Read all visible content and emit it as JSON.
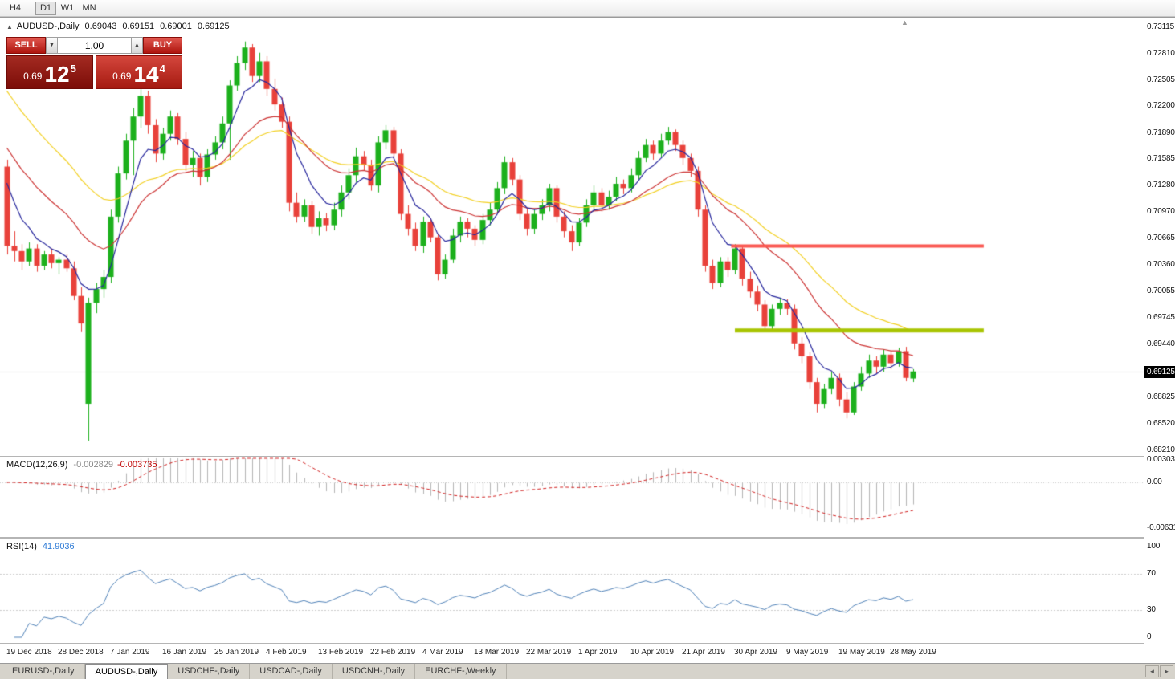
{
  "toolbar": {
    "items": [
      "H4",
      "D1",
      "W1",
      "MN"
    ],
    "active": "D1"
  },
  "chart_header": {
    "symbol": "AUDUSD-,Daily",
    "open": "0.69043",
    "high": "0.69151",
    "low": "0.69001",
    "close": "0.69125"
  },
  "trade_panel": {
    "sell_label": "SELL",
    "buy_label": "BUY",
    "volume": "1.00",
    "sell_price_small": "0.69",
    "sell_price_big": "12",
    "sell_price_sup": "5",
    "buy_price_small": "0.69",
    "buy_price_big": "14",
    "buy_price_sup": "4"
  },
  "icons": {
    "chart_icon": "▲",
    "spinner_up": "▲",
    "spinner_down": "▼",
    "shift_marker": "▲",
    "tab_scroll_left": "◄",
    "tab_scroll_right": "►"
  },
  "price_axis": {
    "ticks": [
      "0.73115",
      "0.72810",
      "0.72505",
      "0.72200",
      "0.71890",
      "0.71585",
      "0.71280",
      "0.70970",
      "0.70665",
      "0.70360",
      "0.70055",
      "0.69745",
      "0.69440",
      "0.68825",
      "0.68520",
      "0.68210"
    ],
    "current": "0.69125"
  },
  "macd_axis": [
    "0.003035",
    "0.00",
    "-0.006311"
  ],
  "rsi_axis": [
    "100",
    "70",
    "30",
    "0"
  ],
  "indicators": {
    "macd_label": "MACD(12,26,9)",
    "macd_value1": "-0.002829",
    "macd_value2": "-0.003735",
    "rsi_label": "RSI(14)",
    "rsi_value": "41.9036"
  },
  "tabs": {
    "items": [
      {
        "label": "EURUSD-,Daily",
        "active": false
      },
      {
        "label": "AUDUSD-,Daily",
        "active": true
      },
      {
        "label": "USDCHF-,Daily",
        "active": false
      },
      {
        "label": "USDCAD-,Daily",
        "active": false
      },
      {
        "label": "USDCNH-,Daily",
        "active": false
      },
      {
        "label": "EURCHF-,Weekly",
        "active": false
      }
    ]
  },
  "colors": {
    "candle_up": "#1cb01c",
    "candle_down": "#e8413a",
    "ma_fast": "#26269c",
    "ma_medium": "#cc3333",
    "ma_slow": "#f2d024",
    "resistance": "#f9564f",
    "support": "#a8c400",
    "macd_histogram": "#b4b4b4",
    "macd_signal": "#d02020",
    "rsi_line": "#4f81b7",
    "bid_line": "#dcdcdc",
    "price_tag_bg": "#000000"
  },
  "chart_data": {
    "type": "candlestick",
    "symbol": "AUDUSD-",
    "timeframe": "Daily",
    "x_labels": [
      "19 Dec 2018",
      "28 Dec 2018",
      "7 Jan 2019",
      "16 Jan 2019",
      "25 Jan 2019",
      "4 Feb 2019",
      "13 Feb 2019",
      "22 Feb 2019",
      "4 Mar 2019",
      "13 Mar 2019",
      "22 Mar 2019",
      "1 Apr 2019",
      "10 Apr 2019",
      "21 Apr 2019",
      "30 Apr 2019",
      "9 May 2019",
      "19 May 2019",
      "28 May 2019"
    ],
    "label_step": 7,
    "y_range": [
      0.68136,
      0.73217
    ],
    "macd_range": [
      -0.006311,
      0.003035
    ],
    "candles": [
      [
        0.715,
        0.7158,
        0.7048,
        0.7058
      ],
      [
        0.7058,
        0.7075,
        0.704,
        0.7052
      ],
      [
        0.7052,
        0.706,
        0.703,
        0.704
      ],
      [
        0.704,
        0.7062,
        0.7035,
        0.7055
      ],
      [
        0.7055,
        0.706,
        0.7028,
        0.7035
      ],
      [
        0.7035,
        0.7052,
        0.703,
        0.7048
      ],
      [
        0.7048,
        0.7055,
        0.7032,
        0.7038
      ],
      [
        0.7038,
        0.7045,
        0.7025,
        0.7042
      ],
      [
        0.7042,
        0.7048,
        0.7028,
        0.7032
      ],
      [
        0.7032,
        0.704,
        0.6995,
        0.7
      ],
      [
        0.7,
        0.701,
        0.6958,
        0.6968
      ],
      [
        0.6875,
        0.6998,
        0.6832,
        0.6992
      ],
      [
        0.6992,
        0.7015,
        0.698,
        0.7008
      ],
      [
        0.7008,
        0.703,
        0.6998,
        0.7022
      ],
      [
        0.7022,
        0.71,
        0.7015,
        0.7092
      ],
      [
        0.7092,
        0.715,
        0.7085,
        0.7142
      ],
      [
        0.7142,
        0.7188,
        0.7135,
        0.718
      ],
      [
        0.718,
        0.7218,
        0.714,
        0.7208
      ],
      [
        0.7208,
        0.724,
        0.7195,
        0.7232
      ],
      [
        0.7232,
        0.7238,
        0.7188,
        0.7198
      ],
      [
        0.7198,
        0.7205,
        0.7155,
        0.7165
      ],
      [
        0.7165,
        0.7195,
        0.7158,
        0.7188
      ],
      [
        0.7188,
        0.7215,
        0.718,
        0.7208
      ],
      [
        0.7208,
        0.7212,
        0.7175,
        0.7182
      ],
      [
        0.7182,
        0.719,
        0.7145,
        0.7152
      ],
      [
        0.7152,
        0.7168,
        0.7138,
        0.716
      ],
      [
        0.716,
        0.7165,
        0.7128,
        0.7138
      ],
      [
        0.7138,
        0.717,
        0.7132,
        0.7164
      ],
      [
        0.7164,
        0.7185,
        0.7158,
        0.7178
      ],
      [
        0.7178,
        0.7208,
        0.717,
        0.72
      ],
      [
        0.72,
        0.725,
        0.7158,
        0.7244
      ],
      [
        0.7244,
        0.7278,
        0.7238,
        0.727
      ],
      [
        0.727,
        0.7295,
        0.7262,
        0.7288
      ],
      [
        0.7288,
        0.7292,
        0.7248,
        0.7255
      ],
      [
        0.7255,
        0.7282,
        0.7248,
        0.7272
      ],
      [
        0.7272,
        0.7278,
        0.7232,
        0.724
      ],
      [
        0.724,
        0.7252,
        0.7215,
        0.7222
      ],
      [
        0.7222,
        0.723,
        0.7195,
        0.7202
      ],
      [
        0.7202,
        0.7208,
        0.7098,
        0.7108
      ],
      [
        0.7108,
        0.712,
        0.7085,
        0.7092
      ],
      [
        0.7092,
        0.7112,
        0.7086,
        0.7105
      ],
      [
        0.7105,
        0.711,
        0.7072,
        0.708
      ],
      [
        0.708,
        0.7098,
        0.707,
        0.709
      ],
      [
        0.709,
        0.7096,
        0.7075,
        0.7082
      ],
      [
        0.7082,
        0.7108,
        0.7076,
        0.71
      ],
      [
        0.71,
        0.7128,
        0.7092,
        0.712
      ],
      [
        0.712,
        0.7148,
        0.7112,
        0.714
      ],
      [
        0.714,
        0.7172,
        0.7132,
        0.7162
      ],
      [
        0.7162,
        0.7168,
        0.7145,
        0.7152
      ],
      [
        0.7152,
        0.7158,
        0.7122,
        0.7128
      ],
      [
        0.7128,
        0.7185,
        0.712,
        0.7178
      ],
      [
        0.7178,
        0.7198,
        0.717,
        0.7192
      ],
      [
        0.7192,
        0.7196,
        0.7158,
        0.7165
      ],
      [
        0.7165,
        0.717,
        0.7088,
        0.7095
      ],
      [
        0.7095,
        0.7105,
        0.707,
        0.7078
      ],
      [
        0.7078,
        0.7085,
        0.7052,
        0.7058
      ],
      [
        0.7058,
        0.7092,
        0.705,
        0.7086
      ],
      [
        0.7086,
        0.709,
        0.7062,
        0.7068
      ],
      [
        0.7068,
        0.7072,
        0.7018,
        0.7025
      ],
      [
        0.7025,
        0.7048,
        0.702,
        0.7042
      ],
      [
        0.7042,
        0.7078,
        0.7038,
        0.707
      ],
      [
        0.707,
        0.7092,
        0.7062,
        0.7086
      ],
      [
        0.7086,
        0.709,
        0.7068,
        0.7078
      ],
      [
        0.7078,
        0.7082,
        0.7058,
        0.7065
      ],
      [
        0.7065,
        0.7095,
        0.706,
        0.7088
      ],
      [
        0.7088,
        0.7108,
        0.7082,
        0.71
      ],
      [
        0.71,
        0.7132,
        0.7095,
        0.7125
      ],
      [
        0.7125,
        0.7162,
        0.7118,
        0.7155
      ],
      [
        0.7155,
        0.716,
        0.7128,
        0.7135
      ],
      [
        0.7135,
        0.714,
        0.7088,
        0.7095
      ],
      [
        0.7095,
        0.7102,
        0.707,
        0.7078
      ],
      [
        0.7078,
        0.71,
        0.7072,
        0.7095
      ],
      [
        0.7095,
        0.7112,
        0.7088,
        0.7105
      ],
      [
        0.7105,
        0.713,
        0.7098,
        0.7125
      ],
      [
        0.7125,
        0.7128,
        0.7085,
        0.7092
      ],
      [
        0.7092,
        0.7098,
        0.7068,
        0.7075
      ],
      [
        0.7075,
        0.7082,
        0.7052,
        0.7062
      ],
      [
        0.7062,
        0.709,
        0.7058,
        0.7085
      ],
      [
        0.7085,
        0.7112,
        0.708,
        0.7105
      ],
      [
        0.7105,
        0.7128,
        0.71,
        0.712
      ],
      [
        0.712,
        0.7125,
        0.7098,
        0.7105
      ],
      [
        0.7105,
        0.7122,
        0.71,
        0.7115
      ],
      [
        0.7115,
        0.7138,
        0.711,
        0.713
      ],
      [
        0.713,
        0.7135,
        0.7118,
        0.7125
      ],
      [
        0.7125,
        0.7148,
        0.712,
        0.714
      ],
      [
        0.714,
        0.7168,
        0.7135,
        0.716
      ],
      [
        0.716,
        0.7182,
        0.7155,
        0.7175
      ],
      [
        0.7175,
        0.718,
        0.7158,
        0.7165
      ],
      [
        0.7165,
        0.7188,
        0.716,
        0.718
      ],
      [
        0.718,
        0.7196,
        0.7175,
        0.719
      ],
      [
        0.719,
        0.7193,
        0.7168,
        0.7175
      ],
      [
        0.7175,
        0.718,
        0.7152,
        0.716
      ],
      [
        0.716,
        0.7165,
        0.7138,
        0.7145
      ],
      [
        0.7145,
        0.715,
        0.7092,
        0.71
      ],
      [
        0.71,
        0.7105,
        0.7028,
        0.7035
      ],
      [
        0.7035,
        0.7042,
        0.7008,
        0.7015
      ],
      [
        0.7015,
        0.7045,
        0.701,
        0.704
      ],
      [
        0.704,
        0.7045,
        0.7022,
        0.703
      ],
      [
        0.703,
        0.706,
        0.7025,
        0.7055
      ],
      [
        0.7055,
        0.7058,
        0.7012,
        0.702
      ],
      [
        0.702,
        0.7028,
        0.6998,
        0.7005
      ],
      [
        0.7005,
        0.7012,
        0.6982,
        0.699
      ],
      [
        0.699,
        0.6995,
        0.6958,
        0.6965
      ],
      [
        0.6965,
        0.699,
        0.696,
        0.6985
      ],
      [
        0.6985,
        0.6998,
        0.6978,
        0.6992
      ],
      [
        0.6992,
        0.6996,
        0.6978,
        0.6985
      ],
      [
        0.6985,
        0.699,
        0.6938,
        0.6945
      ],
      [
        0.6945,
        0.6952,
        0.6922,
        0.693
      ],
      [
        0.693,
        0.6935,
        0.6892,
        0.69
      ],
      [
        0.69,
        0.6905,
        0.6865,
        0.6875
      ],
      [
        0.6875,
        0.6898,
        0.687,
        0.6892
      ],
      [
        0.6892,
        0.6912,
        0.6886,
        0.6905
      ],
      [
        0.6905,
        0.691,
        0.6872,
        0.688
      ],
      [
        0.688,
        0.6888,
        0.6858,
        0.6865
      ],
      [
        0.6865,
        0.69,
        0.6862,
        0.6895
      ],
      [
        0.6895,
        0.6918,
        0.689,
        0.691
      ],
      [
        0.691,
        0.6932,
        0.6905,
        0.6925
      ],
      [
        0.6925,
        0.693,
        0.691,
        0.6918
      ],
      [
        0.6918,
        0.6938,
        0.6912,
        0.6932
      ],
      [
        0.6932,
        0.6936,
        0.6915,
        0.6922
      ],
      [
        0.6922,
        0.694,
        0.6918,
        0.6936
      ],
      [
        0.6936,
        0.6941,
        0.6901,
        0.6905
      ],
      [
        0.69043,
        0.69151,
        0.69001,
        0.69125
      ]
    ],
    "overlays": [
      {
        "name": "resistance-line",
        "price": 0.7058,
        "bar_start": 97.5,
        "bar_end": 131.5,
        "width": 4,
        "color_key": "resistance"
      },
      {
        "name": "support-line",
        "price": 0.696,
        "bar_start": 98,
        "bar_end": 131.5,
        "width": 5,
        "color_key": "support"
      }
    ],
    "indicators": {
      "moving_averages": [
        {
          "period": 30,
          "seed": 0.725,
          "color_key": "ma_slow"
        },
        {
          "period": 18,
          "seed": 0.7185,
          "color_key": "ma_medium"
        },
        {
          "period": 6,
          "seed": 0.716,
          "color_key": "ma_fast"
        }
      ],
      "macd": {
        "fast": 12,
        "slow": 26,
        "signal": 9,
        "current_macd": -0.002829,
        "current_signal": -0.003735
      },
      "rsi": {
        "period": 14,
        "current": 41.9036,
        "levels": [
          70,
          30
        ]
      }
    }
  }
}
